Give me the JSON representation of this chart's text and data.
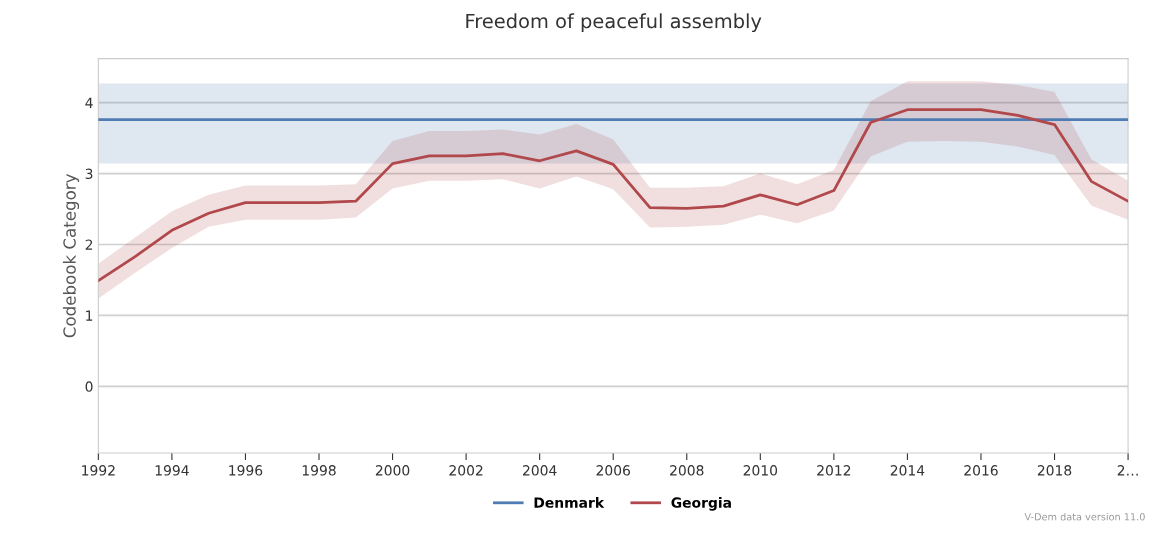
{
  "chart_data": {
    "type": "line",
    "title": "Freedom of peaceful assembly",
    "ylabel": "Codebook Category",
    "x": [
      1992,
      1993,
      1994,
      1995,
      1996,
      1997,
      1998,
      1999,
      2000,
      2001,
      2002,
      2003,
      2004,
      2005,
      2006,
      2007,
      2008,
      2009,
      2010,
      2011,
      2012,
      2013,
      2014,
      2015,
      2016,
      2017,
      2018,
      2019,
      2020
    ],
    "series": [
      {
        "name": "Denmark",
        "color": "#4f7cb3",
        "values": [
          3.76,
          3.76,
          3.76,
          3.76,
          3.76,
          3.76,
          3.76,
          3.76,
          3.76,
          3.76,
          3.76,
          3.76,
          3.76,
          3.76,
          3.76,
          3.76,
          3.76,
          3.76,
          3.76,
          3.76,
          3.76,
          3.76,
          3.76,
          3.76,
          3.76,
          3.76,
          3.76,
          3.76,
          3.76
        ],
        "lower": [
          3.14,
          3.14,
          3.14,
          3.14,
          3.14,
          3.14,
          3.14,
          3.14,
          3.14,
          3.14,
          3.14,
          3.14,
          3.14,
          3.14,
          3.14,
          3.14,
          3.14,
          3.14,
          3.14,
          3.14,
          3.14,
          3.14,
          3.14,
          3.14,
          3.14,
          3.14,
          3.14,
          3.14,
          3.14
        ],
        "upper": [
          4.27,
          4.27,
          4.27,
          4.27,
          4.27,
          4.27,
          4.27,
          4.27,
          4.27,
          4.27,
          4.27,
          4.27,
          4.27,
          4.27,
          4.27,
          4.27,
          4.27,
          4.27,
          4.27,
          4.27,
          4.27,
          4.27,
          4.27,
          4.27,
          4.27,
          4.27,
          4.27,
          4.27,
          4.27
        ]
      },
      {
        "name": "Georgia",
        "color": "#b0484c",
        "values": [
          1.49,
          1.83,
          2.2,
          2.44,
          2.59,
          2.59,
          2.59,
          2.61,
          3.14,
          3.25,
          3.25,
          3.28,
          3.18,
          3.32,
          3.13,
          2.52,
          2.51,
          2.54,
          2.7,
          2.56,
          2.76,
          3.72,
          3.9,
          3.9,
          3.9,
          3.82,
          3.69,
          2.89,
          2.61
        ],
        "lower": [
          1.24,
          1.6,
          1.95,
          2.25,
          2.35,
          2.35,
          2.35,
          2.38,
          2.79,
          2.9,
          2.9,
          2.92,
          2.79,
          2.96,
          2.78,
          2.24,
          2.25,
          2.28,
          2.42,
          2.3,
          2.48,
          3.24,
          3.45,
          3.46,
          3.45,
          3.38,
          3.26,
          2.55,
          2.35
        ],
        "upper": [
          1.73,
          2.1,
          2.47,
          2.7,
          2.83,
          2.83,
          2.83,
          2.85,
          3.46,
          3.6,
          3.6,
          3.62,
          3.55,
          3.7,
          3.48,
          2.8,
          2.8,
          2.82,
          3.0,
          2.85,
          3.05,
          4.02,
          4.3,
          4.3,
          4.3,
          4.25,
          4.15,
          3.2,
          2.9
        ]
      }
    ],
    "xlim": [
      1992,
      2020
    ],
    "xticks": [
      1992,
      1994,
      1996,
      1998,
      2000,
      2002,
      2004,
      2006,
      2008,
      2010,
      2012,
      2014,
      2016,
      2018,
      {
        "value": 2020,
        "label": "2…"
      }
    ],
    "ylim": [
      -0.94,
      4.62
    ],
    "yticks": [
      0,
      1,
      2,
      3,
      4
    ],
    "grid": "y",
    "legend": "bottom",
    "annotations": [
      "V-Dem data version 11.0"
    ]
  }
}
